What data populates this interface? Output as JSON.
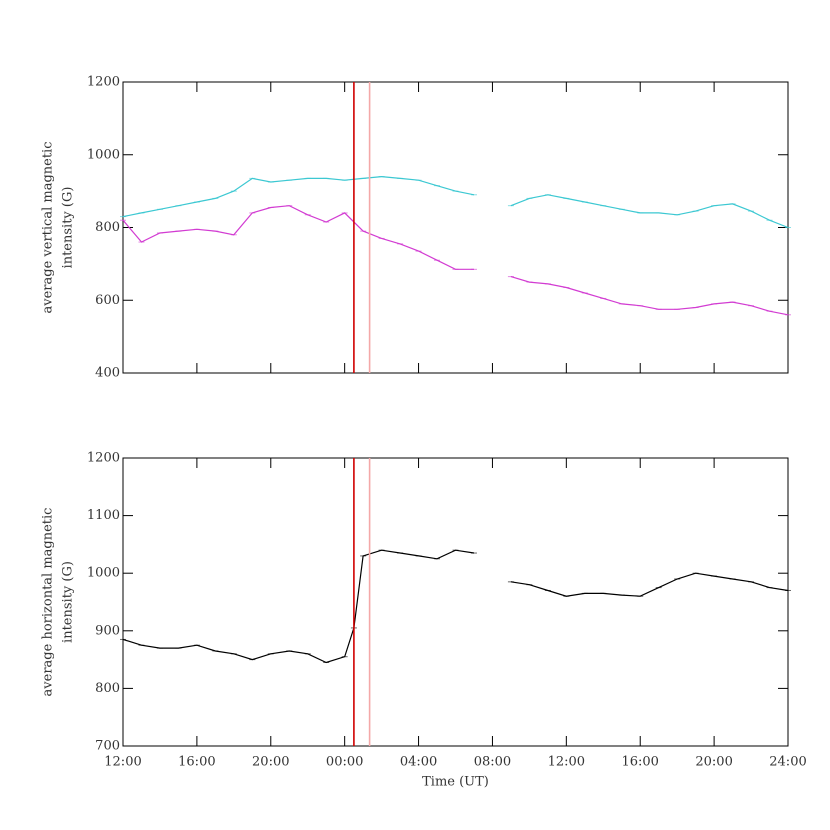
{
  "chart_data": [
    {
      "type": "line",
      "ylabel": [
        "average vertical magnetic",
        "intensity (G)"
      ],
      "x": [
        12,
        13,
        14,
        15,
        16,
        17,
        18,
        19,
        20,
        21,
        22,
        23,
        24,
        25,
        26,
        27,
        28,
        29,
        30,
        31,
        32,
        33,
        34,
        35,
        36,
        37,
        38,
        39,
        40,
        41,
        42,
        43,
        44,
        45,
        46,
        47,
        48
      ],
      "series": [
        {
          "color": "#3cc8d2",
          "values": [
            830,
            840,
            850,
            860,
            870,
            880,
            900,
            935,
            925,
            930,
            935,
            935,
            930,
            935,
            940,
            935,
            930,
            915,
            900,
            890,
            null,
            860,
            880,
            890,
            880,
            870,
            860,
            850,
            840,
            840,
            835,
            845,
            860,
            865,
            845,
            820,
            800
          ]
        },
        {
          "color": "#d23cd2",
          "values": [
            820,
            760,
            785,
            790,
            795,
            790,
            780,
            840,
            855,
            860,
            835,
            815,
            840,
            790,
            770,
            755,
            735,
            710,
            685,
            685,
            null,
            665,
            650,
            645,
            635,
            620,
            605,
            590,
            585,
            575,
            575,
            580,
            590,
            595,
            585,
            570,
            560
          ]
        }
      ],
      "xlim": [
        12,
        48
      ],
      "xticks": [
        12,
        16,
        20,
        24,
        28,
        32,
        36,
        40,
        44,
        48
      ],
      "xticklabels": false,
      "ylim": [
        400,
        1200
      ],
      "yticks": [
        400,
        600,
        800,
        1000,
        1200
      ],
      "vlines": [
        {
          "value": 24.5,
          "color": "#d00000"
        },
        {
          "value": 25.35,
          "color": "#f4a8a8"
        }
      ]
    },
    {
      "type": "line",
      "ylabel": [
        "average horizontal magnetic",
        "intensity (G)"
      ],
      "xlabel": "Time (UT)",
      "x": [
        12,
        13,
        14,
        15,
        16,
        17,
        18,
        19,
        20,
        21,
        22,
        23,
        24,
        24.5,
        25,
        26,
        27,
        28,
        29,
        30,
        31,
        32,
        33,
        34,
        35,
        36,
        37,
        38,
        39,
        40,
        41,
        42,
        43,
        44,
        45,
        46,
        47,
        48
      ],
      "series": [
        {
          "color": "#000000",
          "values": [
            885,
            875,
            870,
            870,
            875,
            865,
            860,
            850,
            860,
            865,
            860,
            845,
            855,
            905,
            1030,
            1040,
            1035,
            1030,
            1025,
            1040,
            1035,
            null,
            985,
            980,
            970,
            960,
            965,
            965,
            962,
            960,
            975,
            990,
            1000,
            995,
            990,
            985,
            975,
            970
          ]
        }
      ],
      "xlim": [
        12,
        48
      ],
      "xticks": [
        {
          "value": 12,
          "label": "12:00"
        },
        {
          "value": 16,
          "label": "16:00"
        },
        {
          "value": 20,
          "label": "20:00"
        },
        {
          "value": 24,
          "label": "00:00"
        },
        {
          "value": 28,
          "label": "04:00"
        },
        {
          "value": 32,
          "label": "08:00"
        },
        {
          "value": 36,
          "label": "12:00"
        },
        {
          "value": 40,
          "label": "16:00"
        },
        {
          "value": 44,
          "label": "20:00"
        },
        {
          "value": 48,
          "label": "24:00"
        }
      ],
      "ylim": [
        700,
        1200
      ],
      "yticks": [
        700,
        800,
        900,
        1000,
        1100,
        1200
      ],
      "vlines": [
        {
          "value": 24.5,
          "color": "#d00000"
        },
        {
          "value": 25.35,
          "color": "#f4a8a8"
        }
      ]
    }
  ]
}
